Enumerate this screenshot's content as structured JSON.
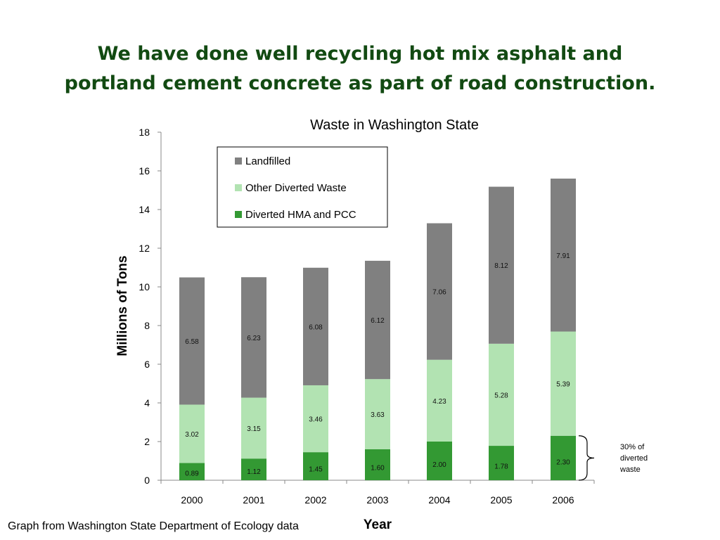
{
  "slide": {
    "title_line1": "We have done well recycling hot mix asphalt and",
    "title_line2": "portland cement concrete as part of road construction.",
    "source": "Graph from Washington State Department of Ecology data"
  },
  "chart_data": {
    "type": "bar",
    "stacked": true,
    "title": "Waste in Washington State",
    "xlabel": "Year",
    "ylabel": "Millions of Tons",
    "ylim": [
      0,
      18
    ],
    "yticks": [
      0,
      2,
      4,
      6,
      8,
      10,
      12,
      14,
      16,
      18
    ],
    "categories": [
      "2000",
      "2001",
      "2002",
      "2003",
      "2004",
      "2005",
      "2006"
    ],
    "series": [
      {
        "name": "Diverted HMA and PCC",
        "color": "#339933",
        "values": [
          0.89,
          1.12,
          1.45,
          1.6,
          2.0,
          1.78,
          2.3
        ],
        "labels": [
          "0.89",
          "1.12",
          "1.45",
          "1.60",
          "2.00",
          "1.78",
          "2.30"
        ]
      },
      {
        "name": "Other Diverted Waste",
        "color": "#b2e3b2",
        "values": [
          3.02,
          3.15,
          3.46,
          3.63,
          4.23,
          5.28,
          5.39
        ],
        "labels": [
          "3.02",
          "3.15",
          "3.46",
          "3.63",
          "4.23",
          "5.28",
          "5.39"
        ]
      },
      {
        "name": "Landfilled",
        "color": "#808080",
        "values": [
          6.58,
          6.23,
          6.08,
          6.12,
          7.06,
          8.12,
          7.91
        ],
        "labels": [
          "6.58",
          "6.23",
          "6.08",
          "6.12",
          "7.06",
          "8.12",
          "7.91"
        ]
      }
    ],
    "legend_order": [
      "Landfilled",
      "Other Diverted Waste",
      "Diverted HMA and PCC"
    ],
    "legend_position": "top-left",
    "grid": false,
    "annotation": {
      "lines": [
        "30% of",
        "diverted",
        "waste"
      ],
      "target_category": "2006",
      "target_series": "Diverted HMA and PCC"
    }
  }
}
